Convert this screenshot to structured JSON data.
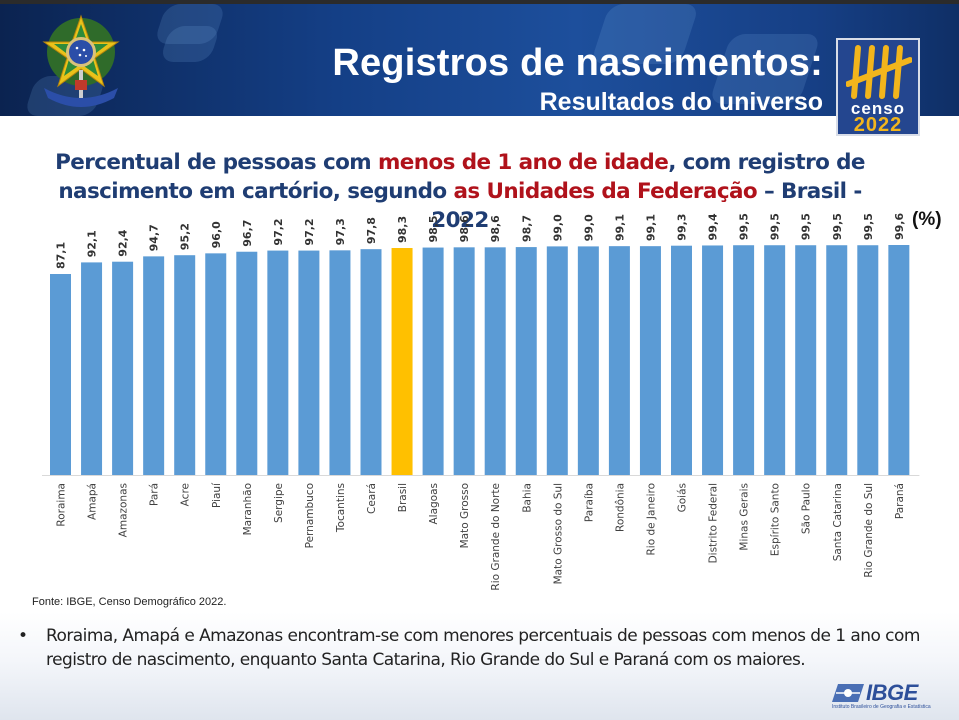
{
  "header": {
    "title": "Registros de nascimentos:",
    "subtitle": "Resultados do universo",
    "censo_logo": {
      "word": "censo",
      "year": "2022"
    },
    "coat_of_arms": "brazil-coat-of-arms-icon"
  },
  "chart_title": {
    "part1": "Percentual de pessoas com ",
    "part2": "menos de 1 ano de idade",
    "part3": ", com registro de nascimento em cartório, segundo ",
    "part4": "as Unidades da Federação",
    "part5": " – Brasil - 2022"
  },
  "unit_label": "(%)",
  "source": "Fonte: IBGE, Censo Demográfico 2022.",
  "bullet": "Roraima, Amapá e Amazonas encontram-se com menores percentuais de pessoas com menos de 1 ano com registro de nascimento, enquanto Santa Catarina, Rio Grande do Sul e Paraná com os maiores.",
  "footer_logo": {
    "name": "IBGE",
    "tagline": "Instituto Brasileiro de Geografia e Estatística"
  },
  "colors": {
    "bar": "#5b9bd5",
    "highlight": "#ffc000",
    "title_blue": "#1f3d73",
    "title_red": "#b0121b"
  },
  "chart_data": {
    "type": "bar",
    "title": "Percentual de pessoas com menos de 1 ano de idade, com registro de nascimento em cartório, segundo as Unidades da Federação – Brasil - 2022",
    "xlabel": "",
    "ylabel": "(%)",
    "ylim": [
      0,
      100
    ],
    "grid": false,
    "highlight": "Brasil",
    "categories": [
      "Roraima",
      "Amapá",
      "Amazonas",
      "Pará",
      "Acre",
      "Piauí",
      "Maranhão",
      "Sergipe",
      "Pernambuco",
      "Tocantins",
      "Ceará",
      "Brasil",
      "Alagoas",
      "Mato Grosso",
      "Rio Grande do Norte",
      "Bahia",
      "Mato Grosso do Sul",
      "Paraíba",
      "Rondônia",
      "Rio de Janeiro",
      "Goiás",
      "Distrito Federal",
      "Minas Gerais",
      "Espírito Santo",
      "São Paulo",
      "Santa Catarina",
      "Rio Grande do Sul",
      "Paraná"
    ],
    "values": [
      87.1,
      92.1,
      92.4,
      94.7,
      95.2,
      96.0,
      96.7,
      97.2,
      97.2,
      97.3,
      97.8,
      98.3,
      98.5,
      98.6,
      98.6,
      98.7,
      99.0,
      99.0,
      99.1,
      99.1,
      99.3,
      99.4,
      99.5,
      99.5,
      99.5,
      99.5,
      99.5,
      99.6
    ],
    "value_labels": [
      "87,1",
      "92,1",
      "92,4",
      "94,7",
      "95,2",
      "96,0",
      "96,7",
      "97,2",
      "97,2",
      "97,3",
      "97,8",
      "98,3",
      "98,5",
      "98,6",
      "98,6",
      "98,7",
      "99,0",
      "99,0",
      "99,1",
      "99,1",
      "99,3",
      "99,4",
      "99,5",
      "99,5",
      "99,5",
      "99,5",
      "99,5",
      "99,6"
    ]
  }
}
